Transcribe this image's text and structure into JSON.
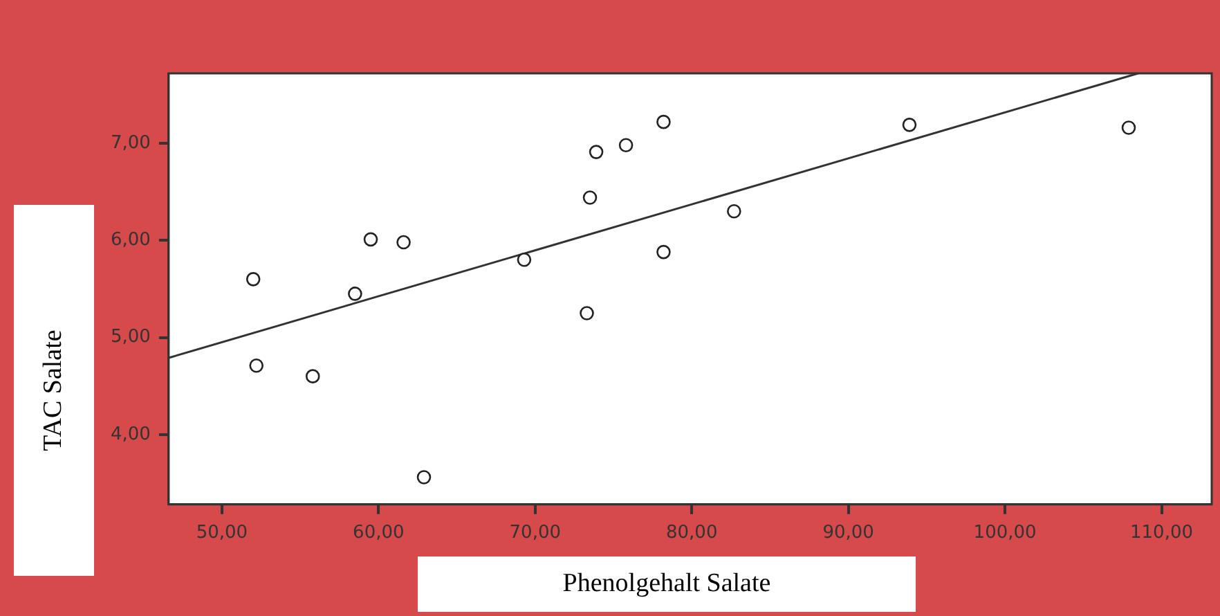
{
  "chart_data": {
    "type": "scatter",
    "xlabel": "Phenolgehalt Salate",
    "ylabel": "TAC Salate",
    "xlim": [
      46.6,
      113.2
    ],
    "ylim": [
      3.28,
      7.72
    ],
    "xticks": [
      {
        "value": 50,
        "label": "50,00"
      },
      {
        "value": 60,
        "label": "60,00"
      },
      {
        "value": 70,
        "label": "70,00"
      },
      {
        "value": 80,
        "label": "80,00"
      },
      {
        "value": 90,
        "label": "90,00"
      },
      {
        "value": 100,
        "label": "100,00"
      },
      {
        "value": 110,
        "label": "110,00"
      }
    ],
    "yticks": [
      {
        "value": 4,
        "label": "4,00"
      },
      {
        "value": 5,
        "label": "5,00"
      },
      {
        "value": 6,
        "label": "6,00"
      },
      {
        "value": 7,
        "label": "7,00"
      }
    ],
    "grid": false,
    "series": [
      {
        "marker": "circle",
        "color": "#222222",
        "x": [
          52.0,
          52.2,
          55.8,
          58.5,
          59.5,
          61.6,
          62.9,
          69.3,
          73.3,
          73.5,
          73.9,
          75.8,
          78.2,
          78.2,
          82.7,
          93.9,
          107.9
        ],
        "values": [
          5.6,
          4.71,
          4.6,
          5.45,
          6.01,
          5.98,
          3.56,
          5.8,
          5.25,
          6.44,
          6.91,
          6.98,
          7.22,
          5.88,
          6.3,
          7.19,
          7.16
        ]
      },
      {
        "type": "line",
        "marker": "none",
        "color": "#333333",
        "x": [
          46.6,
          108.5
        ],
        "values": [
          4.79,
          7.72
        ]
      }
    ]
  }
}
